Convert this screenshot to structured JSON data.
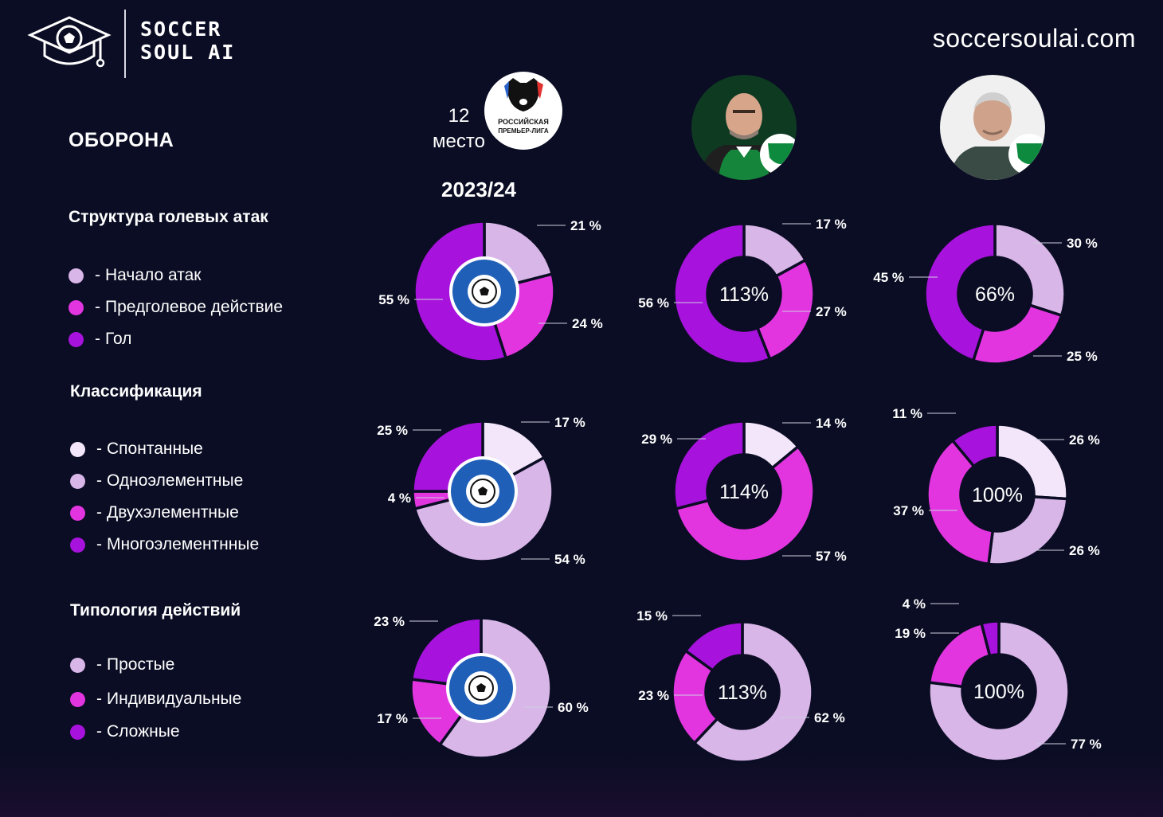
{
  "brand": {
    "name_line1": "SOCCER",
    "name_line2": "SOUL AI",
    "site": "soccersoulai.com"
  },
  "header": {
    "section_title": "ОБОРОНА",
    "place_number": "12",
    "place_word": "место",
    "league_logo_text_1": "РОССИЙСКАЯ",
    "league_logo_text_2": "ПРЕМЬЕР-ЛИГА",
    "season": "2023/24"
  },
  "colors": {
    "lightest": "#f3e6fa",
    "light": "#d8b6e8",
    "pink": "#e235e0",
    "purple": "#a712dc",
    "background": "#0b0d24"
  },
  "groups": [
    {
      "title": "Структура голевых атак",
      "legend": [
        {
          "label": "Начало атак",
          "color": "#d8b6e8"
        },
        {
          "label": "Предголевое действие",
          "color": "#e235e0"
        },
        {
          "label": "Гол",
          "color": "#a712dc"
        }
      ]
    },
    {
      "title": "Классификация",
      "legend": [
        {
          "label": "Спонтанные",
          "color": "#f3e6fa"
        },
        {
          "label": "Одноэлементные",
          "color": "#d8b6e8"
        },
        {
          "label": "Двухэлементные",
          "color": "#e235e0"
        },
        {
          "label": "Многоэлементнные",
          "color": "#a712dc"
        }
      ]
    },
    {
      "title": "Типология действий",
      "legend": [
        {
          "label": "Простые",
          "color": "#d8b6e8"
        },
        {
          "label": "Индивидуальные",
          "color": "#e235e0"
        },
        {
          "label": "Сложные",
          "color": "#a712dc"
        }
      ]
    }
  ],
  "chart_data": [
    {
      "type": "pie",
      "group": "Структура голевых атак",
      "column": "team",
      "center_text": "",
      "categories": [
        "Начало атак",
        "Предголевое действие",
        "Гол"
      ],
      "values": [
        21,
        24,
        55
      ],
      "labels": [
        "21 %",
        "24 %",
        "55 %"
      ],
      "colors": [
        "#d8b6e8",
        "#e235e0",
        "#a712dc"
      ]
    },
    {
      "type": "pie",
      "group": "Структура голевых атак",
      "column": "coach1",
      "center_text": "113%",
      "categories": [
        "Начало атак",
        "Предголевое действие",
        "Гол"
      ],
      "values": [
        17,
        27,
        56
      ],
      "labels": [
        "17 %",
        "27 %",
        "56 %"
      ],
      "colors": [
        "#d8b6e8",
        "#e235e0",
        "#a712dc"
      ]
    },
    {
      "type": "pie",
      "group": "Структура голевых атак",
      "column": "coach2",
      "center_text": "66%",
      "categories": [
        "Начало атак",
        "Предголевое действие",
        "Гол"
      ],
      "values": [
        30,
        25,
        45
      ],
      "labels": [
        "30 %",
        "25 %",
        "45 %"
      ],
      "colors": [
        "#d8b6e8",
        "#e235e0",
        "#a712dc"
      ]
    },
    {
      "type": "pie",
      "group": "Классификация",
      "column": "team",
      "center_text": "",
      "categories": [
        "Спонтанные",
        "Одноэлементные",
        "Двухэлементные",
        "Многоэлементнные"
      ],
      "values": [
        17,
        54,
        4,
        25
      ],
      "labels": [
        "17 %",
        "54 %",
        "4 %",
        "25 %"
      ],
      "colors": [
        "#f3e6fa",
        "#d8b6e8",
        "#e235e0",
        "#a712dc"
      ]
    },
    {
      "type": "pie",
      "group": "Классификация",
      "column": "coach1",
      "center_text": "114%",
      "categories": [
        "Спонтанные",
        "Двухэлементные",
        "Многоэлементнные"
      ],
      "values": [
        14,
        57,
        29
      ],
      "labels": [
        "14 %",
        "57 %",
        "29 %"
      ],
      "colors": [
        "#f3e6fa",
        "#e235e0",
        "#a712dc"
      ]
    },
    {
      "type": "pie",
      "group": "Классификация",
      "column": "coach2",
      "center_text": "100%",
      "categories": [
        "Спонтанные",
        "Одноэлементные",
        "Двухэлементные",
        "Многоэлементнные"
      ],
      "values": [
        26,
        26,
        37,
        11
      ],
      "labels": [
        "26 %",
        "26 %",
        "37 %",
        "11 %"
      ],
      "colors": [
        "#f3e6fa",
        "#d8b6e8",
        "#e235e0",
        "#a712dc"
      ]
    },
    {
      "type": "pie",
      "group": "Типология действий",
      "column": "team",
      "center_text": "",
      "categories": [
        "Простые",
        "Индивидуальные",
        "Сложные"
      ],
      "values": [
        60,
        17,
        23
      ],
      "labels": [
        "60 %",
        "17 %",
        "23 %"
      ],
      "colors": [
        "#d8b6e8",
        "#e235e0",
        "#a712dc"
      ]
    },
    {
      "type": "pie",
      "group": "Типология действий",
      "column": "coach1",
      "center_text": "113%",
      "categories": [
        "Простые",
        "Индивидуальные",
        "Сложные"
      ],
      "values": [
        62,
        23,
        15
      ],
      "labels": [
        "62 %",
        "23 %",
        "15 %"
      ],
      "colors": [
        "#d8b6e8",
        "#e235e0",
        "#a712dc"
      ]
    },
    {
      "type": "pie",
      "group": "Типология действий",
      "column": "coach2",
      "center_text": "100%",
      "categories": [
        "Простые",
        "Индивидуальные",
        "Сложные"
      ],
      "values": [
        77,
        19,
        4
      ],
      "labels": [
        "77 %",
        "19 %",
        "4 %"
      ],
      "colors": [
        "#d8b6e8",
        "#e235e0",
        "#a712dc"
      ]
    }
  ]
}
